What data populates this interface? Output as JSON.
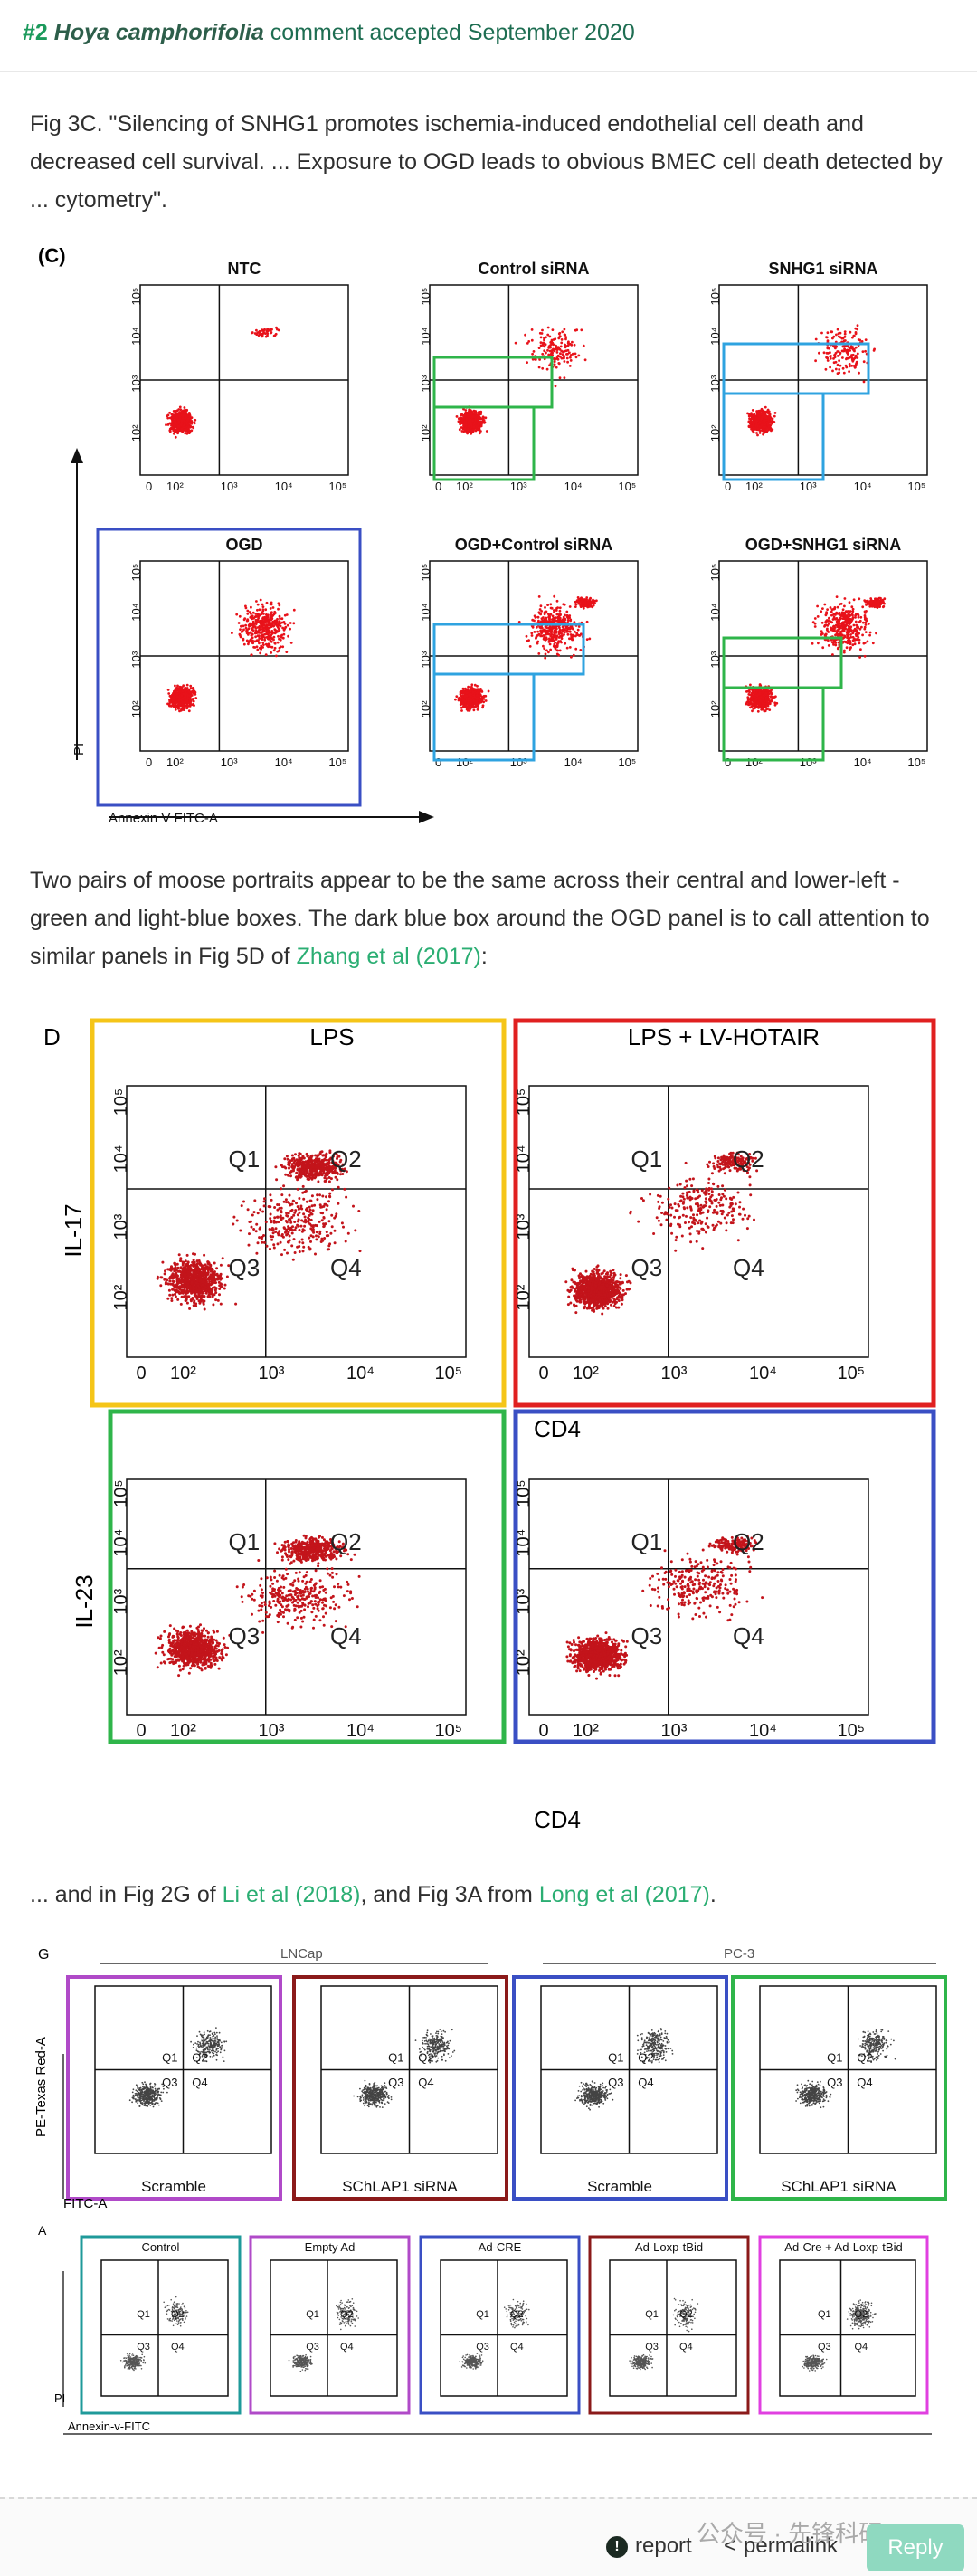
{
  "header": {
    "number": "#2",
    "species": "Hoya camphorifolia",
    "status": "comment accepted September 2020"
  },
  "para1": "Fig 3C. \"Silencing of SNHG1 promotes ischemia-induced endothelial cell death and decreased cell survival. ... Exposure to OGD leads to obvious BMEC cell death detected by ... cytometry\".",
  "para2_text": "Two pairs of moose portraits appear to be the same across their central and lower-left - green and light-blue boxes. The dark blue box around the OGD panel is to call attention to similar panels in Fig 5D of ",
  "para2_link": "Zhang et al (2017)",
  "para2_end": ":",
  "para3_a": "... and in Fig 2G of ",
  "para3_link1": "Li et al (2018)",
  "para3_b": ", and Fig 3A from ",
  "para3_link2": "Long et al (2017)",
  "para3_c": ".",
  "fig1": {
    "label": "(C)",
    "titles": [
      "NTC",
      "Control siRNA",
      "SNHG1 siRNA",
      "OGD",
      "OGD+Control siRNA",
      "OGD+SNHG1 siRNA"
    ],
    "ylabel": "PI",
    "xlabel": "Annexin V FITC-A"
  },
  "fig2": {
    "label": "D",
    "title1": "LPS",
    "title2": "LPS + LV-HOTAIR",
    "ylabel1": "IL-17",
    "ylabel2": "IL-23",
    "xlabel": "CD4",
    "quadrants": [
      "Q1",
      "Q2",
      "Q3",
      "Q4"
    ]
  },
  "fig3": {
    "label": "G",
    "group1": "LNCap",
    "group2": "PC-3",
    "panels": [
      "Scramble",
      "SChLAP1 siRNA",
      "Scramble",
      "SChLAP1 siRNA"
    ],
    "ylabel": "PE-Texas Red-A",
    "xlabel": "FITC-A"
  },
  "fig4": {
    "label": "A",
    "panels": [
      "Control",
      "Empty Ad",
      "Ad-CRE",
      "Ad-Loxp-tBid",
      "Ad-Cre + Ad-Loxp-tBid"
    ],
    "ylabel": "PI",
    "xlabel": "Annexin-v-FITC"
  },
  "footer": {
    "report": "report",
    "permalink": "permalink",
    "reply": "Reply",
    "watermark": "公众号 · 先锋科研"
  },
  "colors": {
    "green_link": "#2bae73",
    "box_blue": "#3a4fc4",
    "box_green": "#2fb54a",
    "box_lightblue": "#2fa3e0",
    "box_yellow": "#f5c518",
    "box_red": "#e02020",
    "box_purple": "#b04ac8",
    "box_darkred": "#8b1a1a",
    "box_teal": "#1f9a9a",
    "box_magenta": "#e040e0"
  }
}
